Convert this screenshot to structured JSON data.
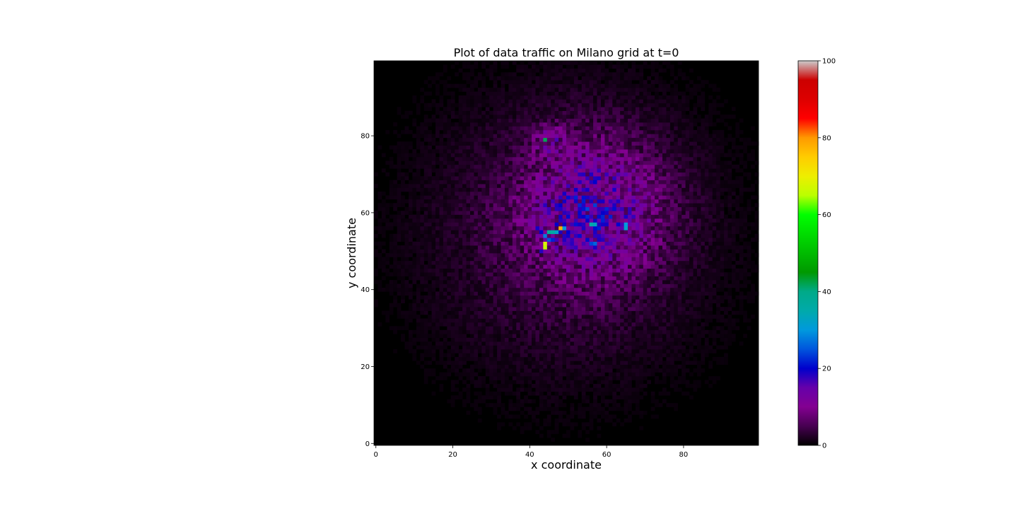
{
  "chart_data": {
    "type": "heatmap",
    "title": "Plot of data traffic on Milano grid at t=0",
    "xlabel": "x coordinate",
    "ylabel": "y coordinate",
    "xlim": [
      0,
      100
    ],
    "ylim": [
      0,
      100
    ],
    "x_ticks": [
      "0",
      "20",
      "40",
      "60",
      "80"
    ],
    "y_ticks": [
      "0",
      "20",
      "40",
      "60",
      "80"
    ],
    "grid_size": [
      100,
      100
    ],
    "colorbar": {
      "colormap": "nipy_spectral",
      "range": [
        0,
        100
      ],
      "ticks": [
        "0",
        "20",
        "40",
        "60",
        "80",
        "100"
      ]
    },
    "background_value": 0,
    "value_fields": [
      {
        "center": [
          57,
          61
        ],
        "radius": 17,
        "peak": 12
      },
      {
        "center": [
          50,
          55
        ],
        "radius": 35,
        "peak": 5
      },
      {
        "center": [
          45,
          79
        ],
        "radius": 4,
        "peak": 7
      }
    ],
    "hotspots": [
      {
        "x": 44,
        "y": 79,
        "value": 42
      },
      {
        "x": 43,
        "y": 80,
        "value": 10
      },
      {
        "x": 44,
        "y": 52,
        "value": 68
      },
      {
        "x": 44,
        "y": 51,
        "value": 66
      },
      {
        "x": 45,
        "y": 55,
        "value": 38
      },
      {
        "x": 46,
        "y": 55,
        "value": 36
      },
      {
        "x": 47,
        "y": 55,
        "value": 32
      },
      {
        "x": 48,
        "y": 56,
        "value": 78
      },
      {
        "x": 49,
        "y": 56,
        "value": 30
      },
      {
        "x": 44,
        "y": 54,
        "value": 28
      },
      {
        "x": 45,
        "y": 53,
        "value": 25
      },
      {
        "x": 43,
        "y": 55,
        "value": 20
      },
      {
        "x": 42,
        "y": 56,
        "value": 19
      },
      {
        "x": 46,
        "y": 53,
        "value": 22
      },
      {
        "x": 56,
        "y": 57,
        "value": 35
      },
      {
        "x": 57,
        "y": 57,
        "value": 33
      },
      {
        "x": 65,
        "y": 56,
        "value": 32
      },
      {
        "x": 65,
        "y": 57,
        "value": 30
      },
      {
        "x": 57,
        "y": 52,
        "value": 26
      },
      {
        "x": 56,
        "y": 52,
        "value": 24
      },
      {
        "x": 53,
        "y": 57,
        "value": 19
      },
      {
        "x": 54,
        "y": 57,
        "value": 18
      },
      {
        "x": 58,
        "y": 57,
        "value": 18
      },
      {
        "x": 59,
        "y": 57,
        "value": 19
      },
      {
        "x": 60,
        "y": 57,
        "value": 19
      },
      {
        "x": 52,
        "y": 58,
        "value": 17
      },
      {
        "x": 51,
        "y": 57,
        "value": 17
      },
      {
        "x": 59,
        "y": 53,
        "value": 18
      },
      {
        "x": 44,
        "y": 62,
        "value": 18
      },
      {
        "x": 45,
        "y": 61,
        "value": 17
      },
      {
        "x": 56,
        "y": 64,
        "value": 17
      },
      {
        "x": 58,
        "y": 54,
        "value": 18
      },
      {
        "x": 63,
        "y": 70,
        "value": 16
      },
      {
        "x": 47,
        "y": 57,
        "value": 20
      },
      {
        "x": 43,
        "y": 50,
        "value": 18
      }
    ]
  }
}
